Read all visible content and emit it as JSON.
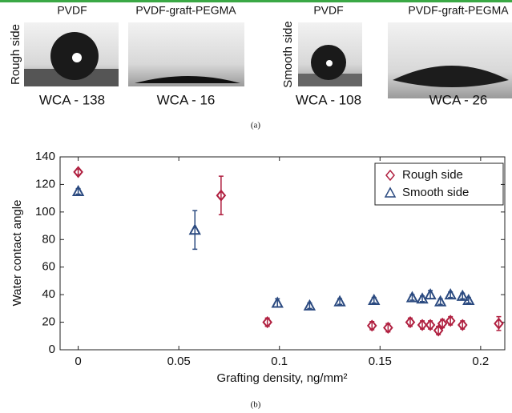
{
  "panel_a": {
    "row_labels": [
      "Rough side",
      "Smooth side"
    ],
    "images": [
      {
        "title": "PVDF",
        "caption": "WCA - 138"
      },
      {
        "title": "PVDF-graft-PEGMA",
        "caption": "WCA - 16"
      },
      {
        "title": "PVDF",
        "caption": "WCA - 108"
      },
      {
        "title": "PVDF-graft-PEGMA",
        "caption": "WCA - 26"
      }
    ],
    "caption": "(a)"
  },
  "chart_data": {
    "type": "scatter",
    "caption": "(b)",
    "x_label": "Grafting density, ng/mm²",
    "y_label": "Water contact angle",
    "xlim": [
      -0.009,
      0.212
    ],
    "ylim": [
      0,
      140
    ],
    "xticks": [
      0,
      0.05,
      0.1,
      0.15,
      0.2
    ],
    "yticks": [
      0,
      20,
      40,
      60,
      80,
      100,
      120,
      140
    ],
    "grid": false,
    "legend": "upper right",
    "series": [
      {
        "name": "Rough side",
        "color": "#b02040",
        "marker": "diamond",
        "x": [
          0,
          0.071,
          0.094,
          0.146,
          0.154,
          0.165,
          0.171,
          0.175,
          0.179,
          0.181,
          0.185,
          0.191,
          0.209
        ],
        "values": [
          129,
          112,
          20,
          17.5,
          16,
          20,
          18,
          18,
          14,
          19,
          21,
          18,
          19
        ],
        "errors": [
          2,
          14,
          3,
          3,
          3,
          3,
          3,
          3,
          3,
          3,
          3,
          3,
          5
        ]
      },
      {
        "name": "Smooth side",
        "color": "#2b4a80",
        "marker": "triangle",
        "x": [
          0,
          0.058,
          0.099,
          0.115,
          0.13,
          0.147,
          0.166,
          0.171,
          0.175,
          0.18,
          0.185,
          0.191,
          0.194
        ],
        "values": [
          115,
          87,
          34,
          32,
          35,
          36,
          38,
          37,
          40,
          35,
          40,
          39,
          36
        ],
        "errors": [
          2,
          14,
          3,
          2,
          2,
          2,
          2,
          2,
          3,
          2,
          2,
          2,
          2
        ]
      }
    ]
  }
}
